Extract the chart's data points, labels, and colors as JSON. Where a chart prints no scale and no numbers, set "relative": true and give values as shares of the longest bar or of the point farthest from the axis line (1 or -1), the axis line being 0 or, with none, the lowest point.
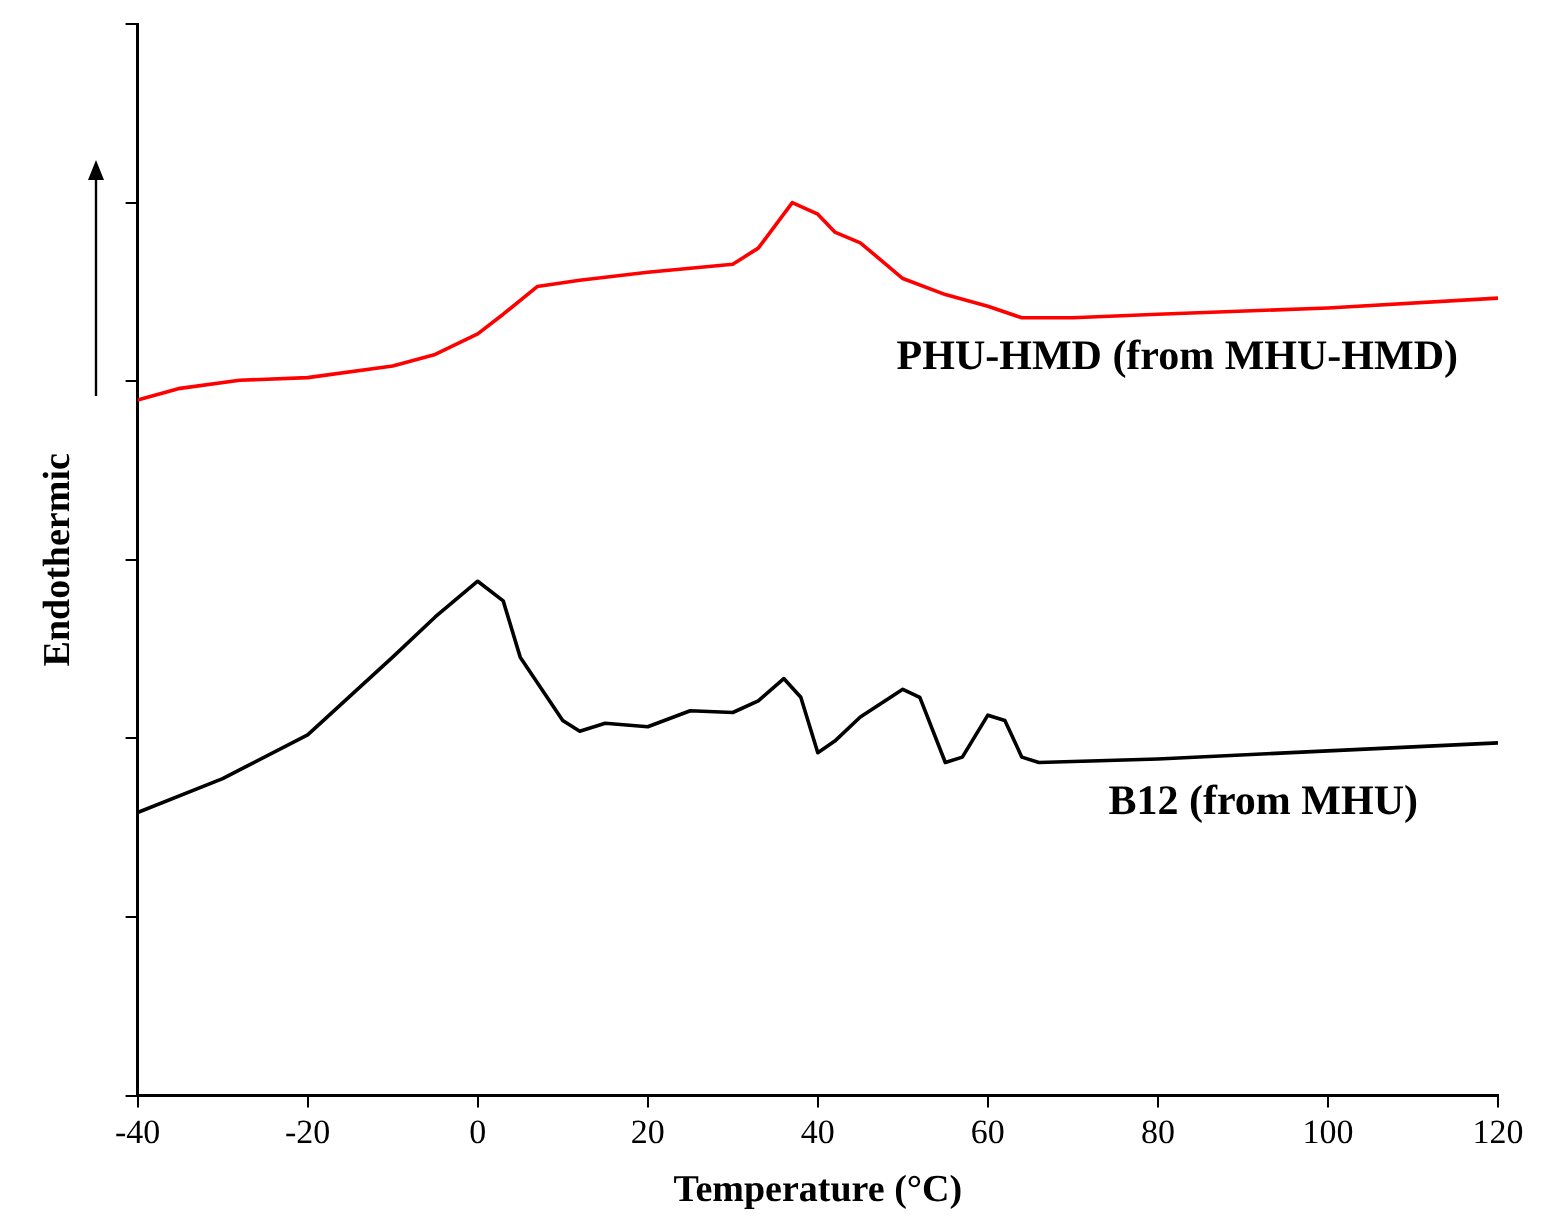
{
  "chart_data": {
    "type": "line",
    "xlabel": "Temperature (°C)",
    "ylabel": "Endothermic",
    "relative": true,
    "xlim": [
      -40,
      120
    ],
    "xticks": [
      -40,
      -20,
      0,
      20,
      40,
      60,
      80,
      100,
      120
    ],
    "grid": false,
    "legend": false,
    "marker": "none",
    "line_style": "solid",
    "series": [
      {
        "name": "PHU-HMD (from MHU-HMD)",
        "color": "#ff0000",
        "x": [
          -40,
          -35,
          -28,
          -20,
          -10,
          -5,
          0,
          3,
          7,
          12,
          20,
          30,
          33,
          37,
          40,
          42,
          45,
          50,
          55,
          60,
          64,
          70,
          80,
          100,
          120
        ],
        "values": [
          0.779,
          0.792,
          0.801,
          0.804,
          0.817,
          0.83,
          0.853,
          0.875,
          0.906,
          0.913,
          0.922,
          0.931,
          0.949,
          1,
          0.987,
          0.967,
          0.955,
          0.915,
          0.897,
          0.884,
          0.871,
          0.871,
          0.875,
          0.882,
          0.893
        ]
      },
      {
        "name": "B12 (from MHU)",
        "color": "#000000",
        "x": [
          -40,
          -30,
          -20,
          -10,
          -5,
          0,
          3,
          5,
          10,
          12,
          15,
          20,
          25,
          30,
          33,
          36,
          38,
          40,
          42,
          45,
          50,
          52,
          55,
          57,
          60,
          62,
          64,
          66,
          80,
          100,
          120
        ],
        "values": [
          0.317,
          0.355,
          0.404,
          0.491,
          0.536,
          0.576,
          0.554,
          0.491,
          0.42,
          0.408,
          0.417,
          0.413,
          0.431,
          0.429,
          0.442,
          0.467,
          0.446,
          0.384,
          0.397,
          0.424,
          0.455,
          0.446,
          0.373,
          0.379,
          0.426,
          0.42,
          0.379,
          0.373,
          0.377,
          0.386,
          0.395
        ]
      }
    ]
  }
}
